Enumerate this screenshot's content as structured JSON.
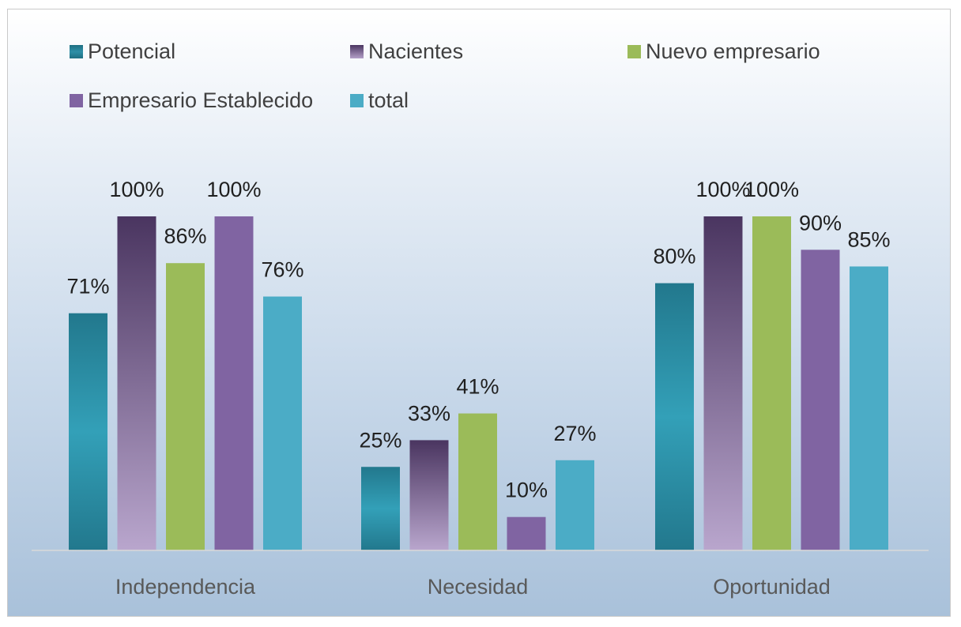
{
  "chart_data": {
    "type": "bar",
    "title": "",
    "xlabel": "",
    "ylabel": "",
    "ylim": [
      0,
      100
    ],
    "grid": false,
    "legend_position": "top",
    "categories": [
      "Independencia",
      "Necesidad",
      "Oportunidad"
    ],
    "series": [
      {
        "name": "Potencial",
        "values": [
          71,
          25,
          80
        ],
        "labels": [
          "71%",
          "25%",
          "80%"
        ],
        "color": "#2E8FA6"
      },
      {
        "name": "Nacientes",
        "values": [
          100,
          33,
          100
        ],
        "labels": [
          "100%",
          "33%",
          "100%"
        ],
        "color": "#5D4577"
      },
      {
        "name": "Nuevo empresario",
        "values": [
          86,
          41,
          100
        ],
        "labels": [
          "86%",
          "41%",
          "100%"
        ],
        "color": "#9BBB59"
      },
      {
        "name": "Empresario Establecido",
        "values": [
          100,
          10,
          90
        ],
        "labels": [
          "100%",
          "10%",
          "90%"
        ],
        "color": "#8064A2"
      },
      {
        "name": "total",
        "values": [
          76,
          27,
          85
        ],
        "labels": [
          "76%",
          "27%",
          "85%"
        ],
        "color": "#4BACC6"
      }
    ]
  }
}
